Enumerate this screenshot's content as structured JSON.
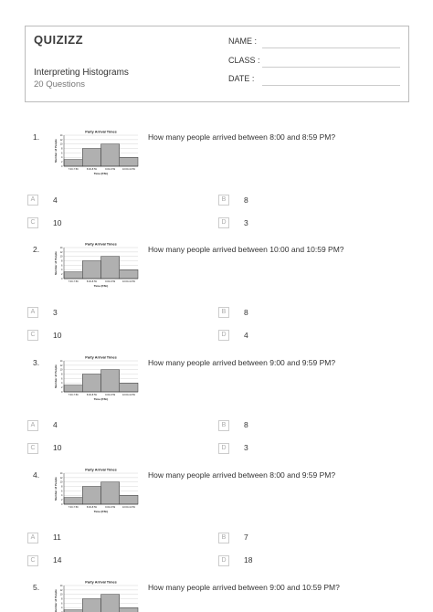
{
  "header": {
    "logo": "QUIZIZZ",
    "title": "Interpreting Histograms",
    "subtitle": "20 Questions",
    "fields": [
      "NAME :",
      "CLASS :",
      "DATE :"
    ]
  },
  "figure": {
    "type": "bar",
    "title": "Party Arrival Times",
    "x_label": "Time (P.M.)",
    "y_label": "Number of People",
    "categories": [
      "7:00-7:59",
      "8:00-8:59",
      "9:00-9:59",
      "10:00-10:59"
    ],
    "values": [
      3,
      8,
      10,
      4
    ],
    "color": "#b0b0b0",
    "ylim": [
      0,
      14
    ],
    "yticks": [
      0,
      2,
      4,
      6,
      8,
      10,
      12,
      14
    ]
  },
  "questions": [
    {
      "number": "1.",
      "text": "How many people arrived between 8:00 and 8:59 PM?",
      "options": [
        {
          "letter": "A",
          "text": "4"
        },
        {
          "letter": "B",
          "text": "8"
        },
        {
          "letter": "C",
          "text": "10"
        },
        {
          "letter": "D",
          "text": "3"
        }
      ]
    },
    {
      "number": "2.",
      "text": "How many people arrived between 10:00 and 10:59 PM?",
      "options": [
        {
          "letter": "A",
          "text": "3"
        },
        {
          "letter": "B",
          "text": "8"
        },
        {
          "letter": "C",
          "text": "10"
        },
        {
          "letter": "D",
          "text": "4"
        }
      ]
    },
    {
      "number": "3.",
      "text": "How many people arrived between 9:00 and 9:59 PM?",
      "options": [
        {
          "letter": "A",
          "text": "4"
        },
        {
          "letter": "B",
          "text": "8"
        },
        {
          "letter": "C",
          "text": "10"
        },
        {
          "letter": "D",
          "text": "3"
        }
      ]
    },
    {
      "number": "4.",
      "text": "How many people arrived between 8:00 and 9:59 PM?",
      "options": [
        {
          "letter": "A",
          "text": "11"
        },
        {
          "letter": "B",
          "text": "7"
        },
        {
          "letter": "C",
          "text": "14"
        },
        {
          "letter": "D",
          "text": "18"
        }
      ]
    },
    {
      "number": "5.",
      "text": "How many people arrived between 9:00 and 10:59 PM?",
      "options": []
    }
  ]
}
